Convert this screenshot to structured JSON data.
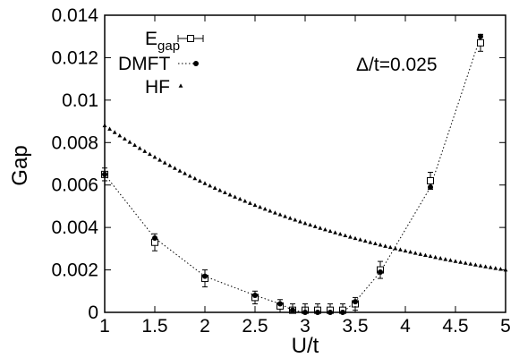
{
  "chart_data": {
    "type": "scatter",
    "title": "",
    "xlabel": "U/t",
    "ylabel": "Gap",
    "xlim": [
      1,
      5
    ],
    "ylim": [
      0,
      0.014
    ],
    "x_ticks": [
      1,
      1.5,
      2,
      2.5,
      3,
      3.5,
      4,
      4.5,
      5
    ],
    "x_tick_labels": [
      "1",
      "1.5",
      "2",
      "2.5",
      "3",
      "3.5",
      "4",
      "4.5",
      "5"
    ],
    "y_ticks": [
      0,
      0.002,
      0.004,
      0.006,
      0.008,
      0.01,
      0.012,
      0.014
    ],
    "y_tick_labels": [
      "0",
      "0.002",
      "0.004",
      "0.006",
      "0.008",
      "0.01",
      "0.012",
      "0.014"
    ],
    "grid": false,
    "legend_position": "top-left",
    "annotation": "Δ/t=0.025",
    "series": [
      {
        "name": "E",
        "name_subscript": "gap",
        "marker": "open-square",
        "error_bars": true,
        "x": [
          1.0,
          1.5,
          2.0,
          2.5,
          2.75,
          2.875,
          3.0,
          3.125,
          3.25,
          3.375,
          3.5,
          3.75,
          4.25,
          4.75
        ],
        "y": [
          0.0065,
          0.0033,
          0.0016,
          0.0007,
          0.0003,
          0.0001,
          0.0001,
          0.0001,
          0.0001,
          0.0001,
          0.0004,
          0.002,
          0.0062,
          0.0127
        ],
        "err": [
          0.0003,
          0.0004,
          0.0004,
          0.0003,
          0.0003,
          0.0003,
          0.0003,
          0.0003,
          0.0003,
          0.0003,
          0.0003,
          0.0004,
          0.0004,
          0.0004
        ]
      },
      {
        "name": "DMFT",
        "marker": "filled-circle",
        "line": "dotted",
        "x": [
          1.0,
          1.5,
          2.0,
          2.5,
          2.75,
          2.875,
          3.0,
          3.125,
          3.25,
          3.375,
          3.5,
          3.75,
          4.25,
          4.75
        ],
        "y": [
          0.0065,
          0.0035,
          0.0017,
          0.0008,
          0.0004,
          0.0001,
          0.0,
          0.0,
          0.0,
          0.0,
          0.0005,
          0.0019,
          0.0059,
          0.013
        ]
      },
      {
        "name": "HF",
        "marker": "filled-triangle",
        "function": "exponential",
        "x_start": 1.0,
        "x_end": 5.0,
        "x_step": 0.05,
        "y_at_start": 0.0088,
        "y_at_end": 0.002
      }
    ],
    "colors": {
      "ink": "#000000",
      "background": "#ffffff"
    }
  }
}
